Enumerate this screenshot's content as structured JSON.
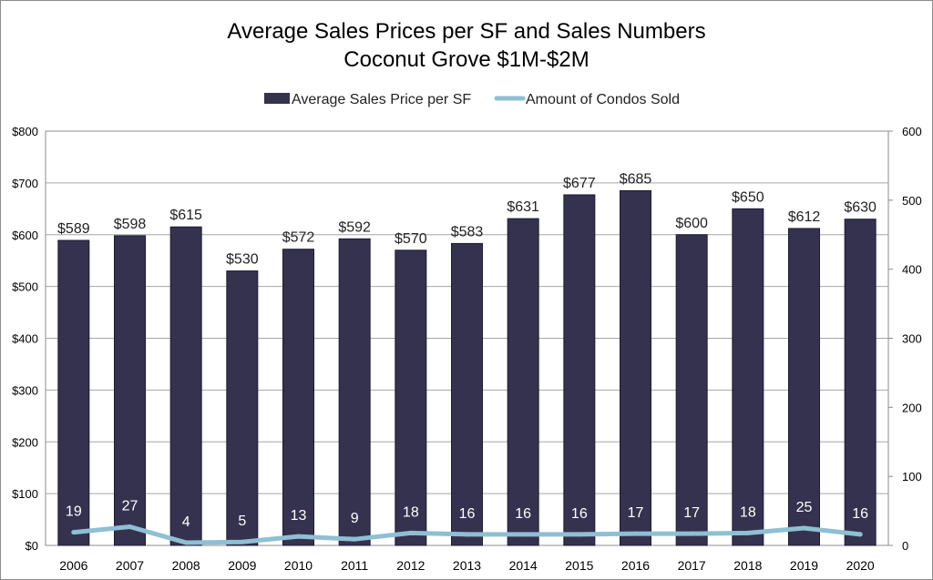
{
  "chart_data": {
    "type": "bar",
    "title": "Average Sales Prices per SF and Sales Numbers",
    "subtitle": "Coconut Grove $1M-$2M",
    "categories": [
      "2006",
      "2007",
      "2008",
      "2009",
      "2010",
      "2011",
      "2012",
      "2013",
      "2014",
      "2015",
      "2016",
      "2017",
      "2018",
      "2019",
      "2020"
    ],
    "series": [
      {
        "name": "Average Sales Price per SF",
        "type": "bar",
        "axis": "left",
        "color": "#35324f",
        "values": [
          589,
          598,
          615,
          530,
          572,
          592,
          570,
          583,
          631,
          677,
          685,
          600,
          650,
          612,
          630
        ],
        "data_labels": [
          "$589",
          "$598",
          "$615",
          "$530",
          "$572",
          "$592",
          "$570",
          "$583",
          "$631",
          "$677",
          "$685",
          "$600",
          "$650",
          "$612",
          "$630"
        ]
      },
      {
        "name": "Amount of Condos Sold",
        "type": "line",
        "axis": "right",
        "color": "#8fbfd3",
        "values": [
          19,
          27,
          4,
          5,
          13,
          9,
          18,
          16,
          16,
          16,
          17,
          17,
          18,
          25,
          16
        ],
        "data_labels": [
          "19",
          "27",
          "4",
          "5",
          "13",
          "9",
          "18",
          "16",
          "16",
          "16",
          "17",
          "17",
          "18",
          "25",
          "16"
        ]
      }
    ],
    "y_left": {
      "ylim": [
        0,
        800
      ],
      "ticks": [
        0,
        100,
        200,
        300,
        400,
        500,
        600,
        700,
        800
      ],
      "tick_labels": [
        "$0",
        "$100",
        "$200",
        "$300",
        "$400",
        "$500",
        "$600",
        "$700",
        "$800"
      ]
    },
    "y_right": {
      "ylim": [
        0,
        600
      ],
      "ticks": [
        0,
        100,
        200,
        300,
        400,
        500,
        600
      ],
      "tick_labels": [
        "0",
        "100",
        "200",
        "300",
        "400",
        "500",
        "600"
      ]
    },
    "grid": true,
    "legend": "top-center"
  }
}
